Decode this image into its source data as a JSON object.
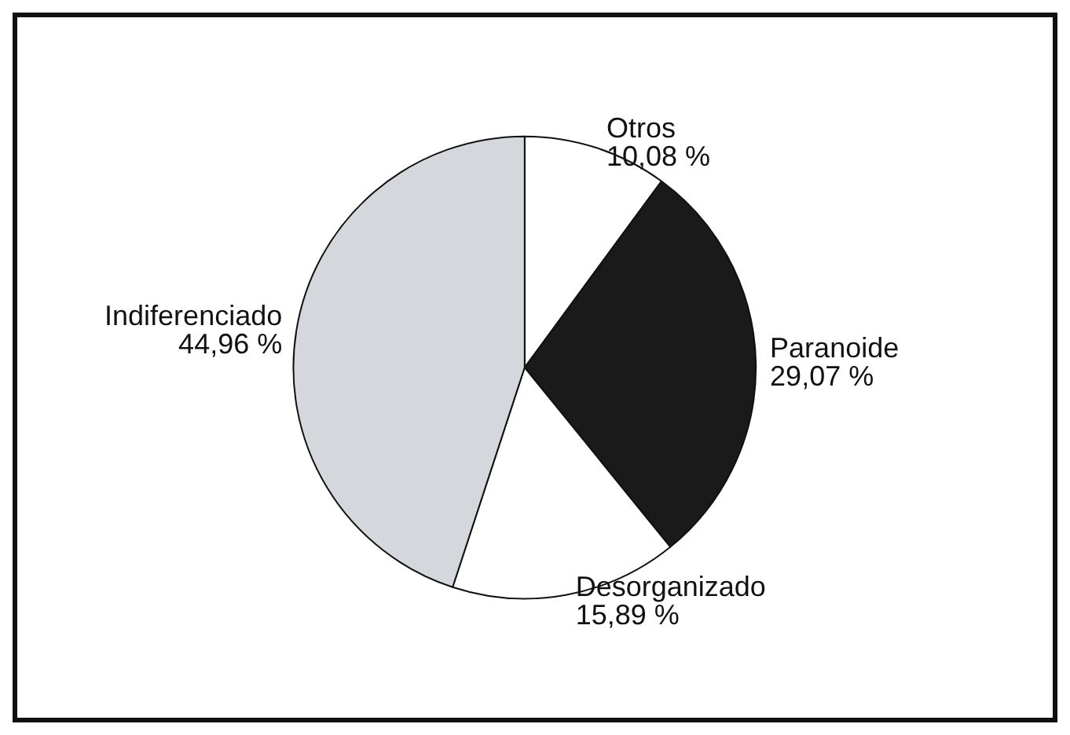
{
  "chart_data": {
    "type": "pie",
    "categories": [
      "Otros",
      "Paranoide",
      "Desorganizado",
      "Indiferenciado"
    ],
    "values": [
      10.08,
      29.07,
      15.89,
      44.96
    ],
    "colors": [
      "#ffffff",
      "#1a1a1a",
      "#ffffff",
      "#d4d7db"
    ],
    "value_labels": [
      "10,08 %",
      "29,07 %",
      "15,89 %",
      "44,96 %"
    ],
    "legend": false
  }
}
